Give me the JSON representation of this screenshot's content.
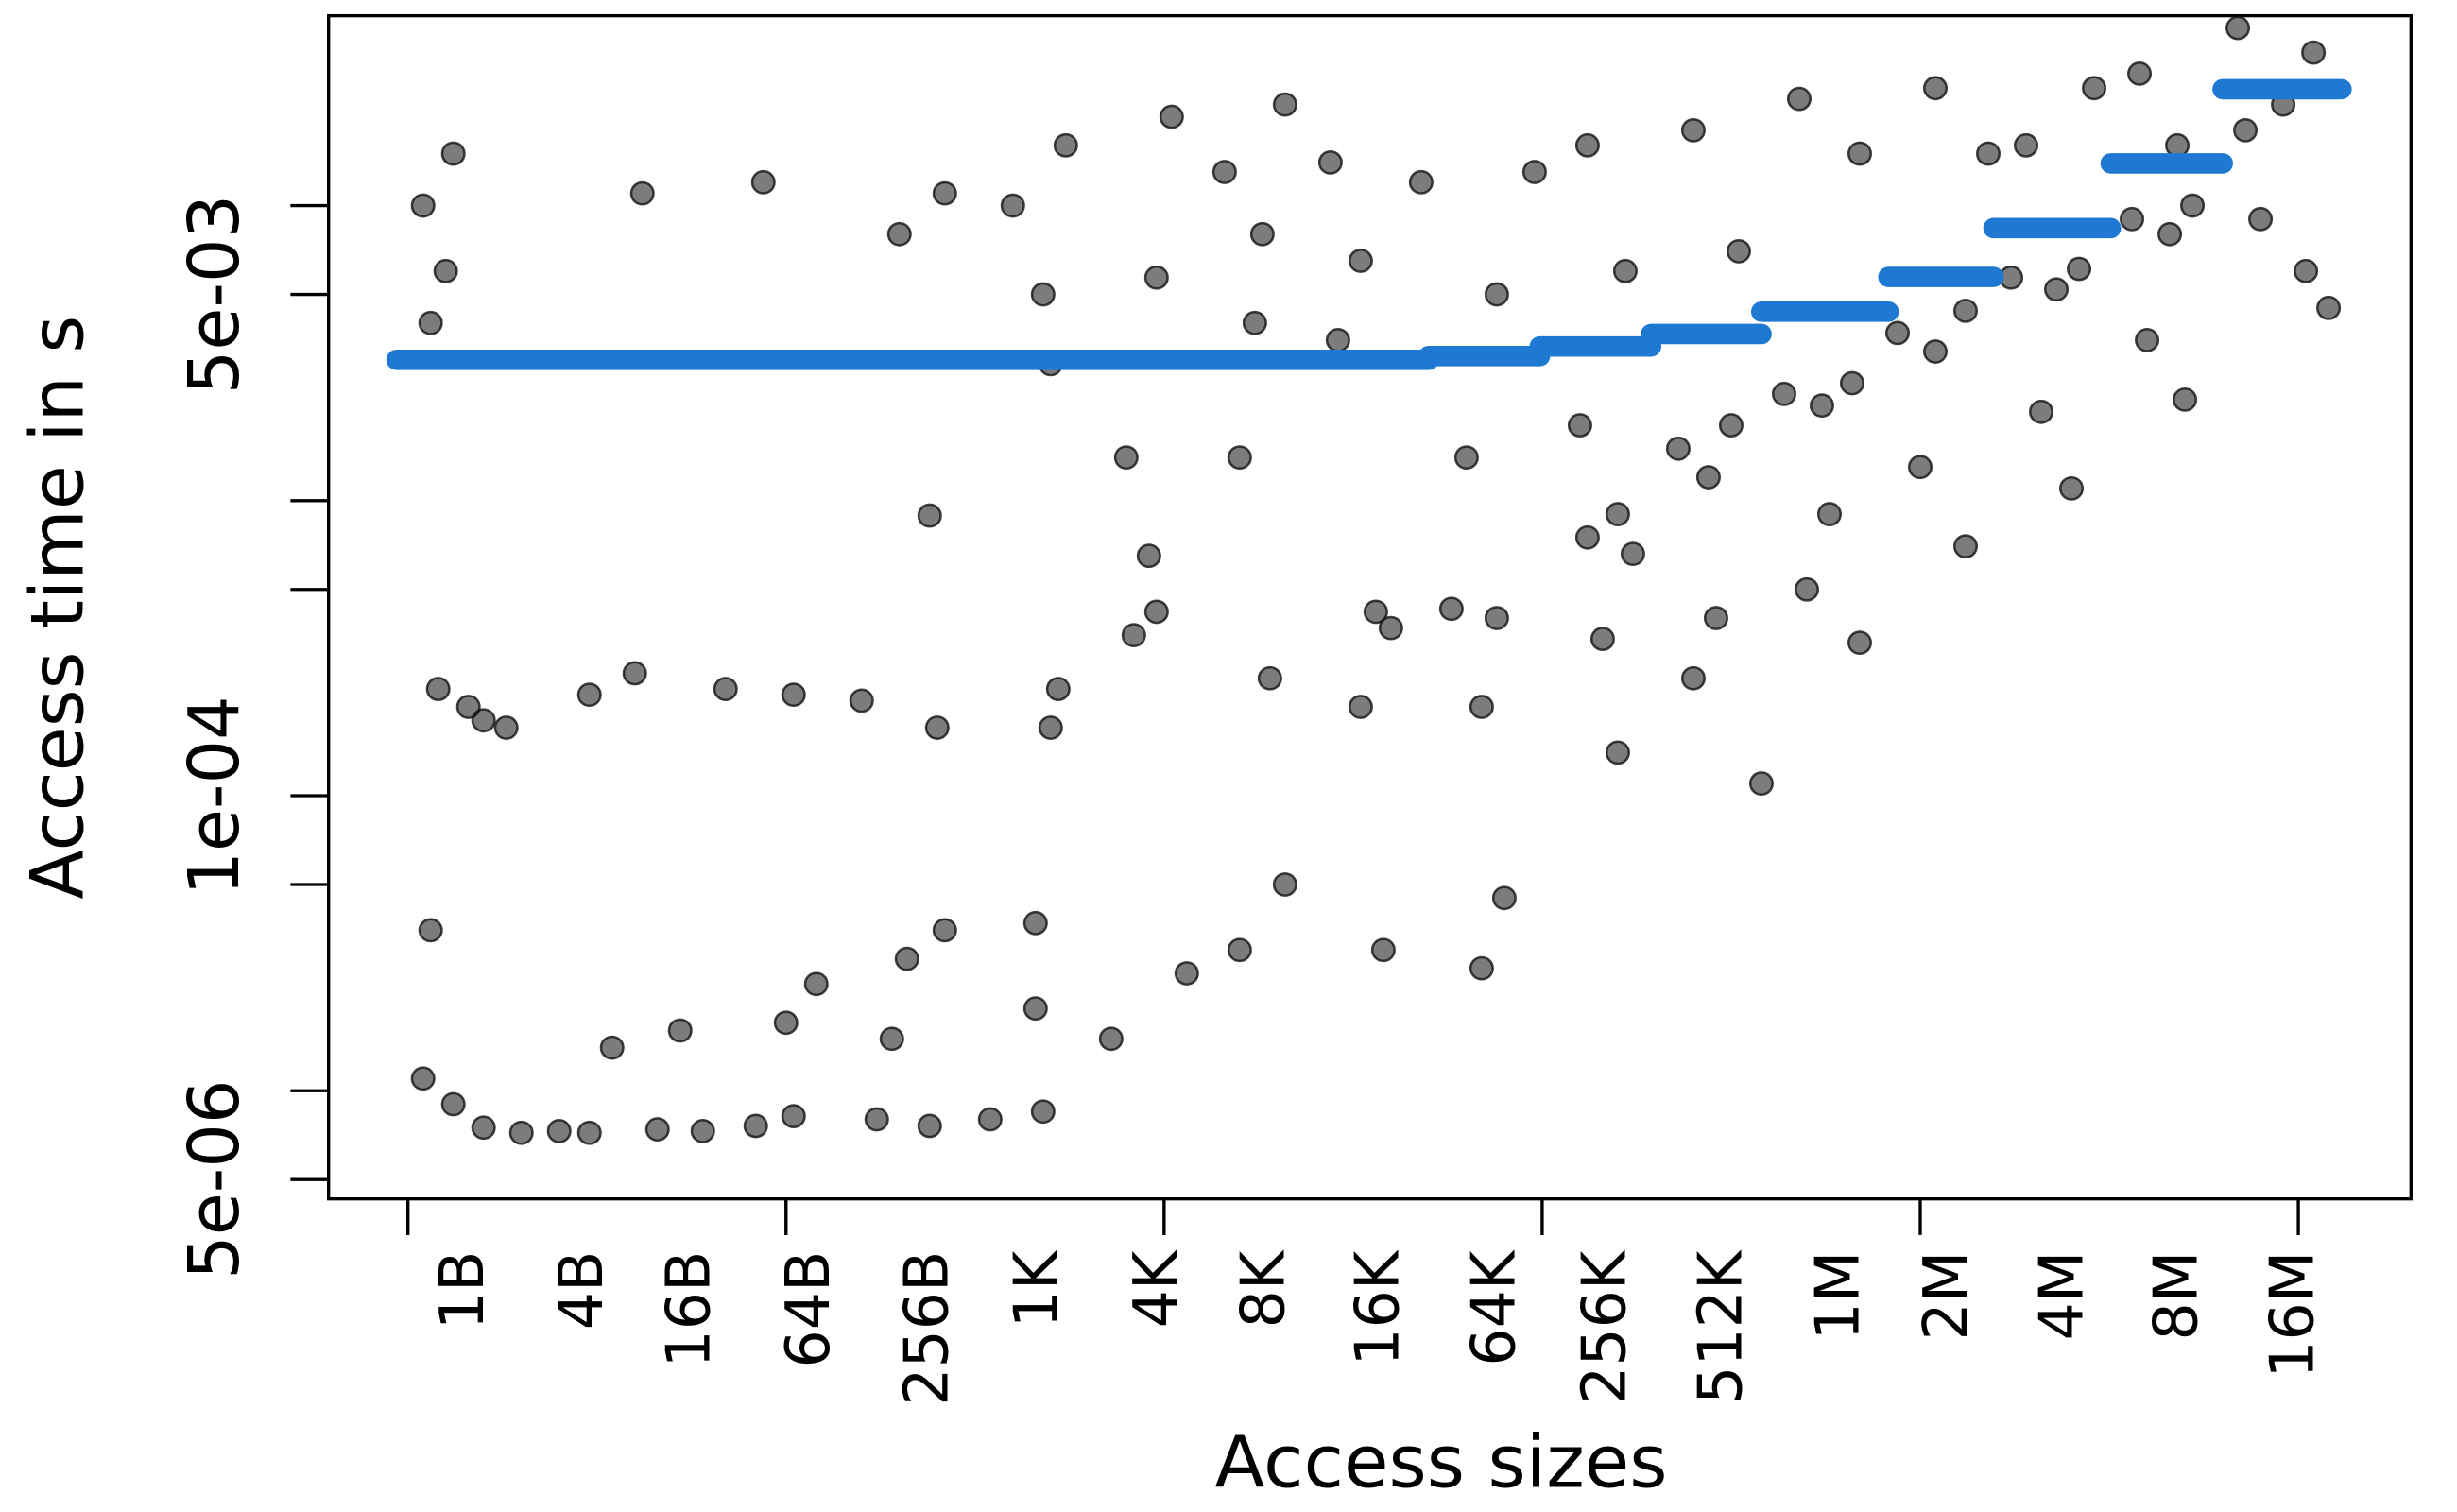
{
  "chart_data": {
    "type": "scatter",
    "xlabel": "Access sizes",
    "ylabel": "Access time in s",
    "log_y": true,
    "xlim": [
      -1.05,
      26.49
    ],
    "ylim": [
      4.3e-06,
      0.044
    ],
    "xticks": [
      0,
      5,
      10,
      15,
      20,
      25
    ],
    "xlabels": [
      {
        "value": 0.7,
        "label": "1B"
      },
      {
        "value": 2.27,
        "label": "4B"
      },
      {
        "value": 3.69,
        "label": "16B"
      },
      {
        "value": 5.27,
        "label": "64B"
      },
      {
        "value": 6.84,
        "label": "256B"
      },
      {
        "value": 8.29,
        "label": "1K"
      },
      {
        "value": 9.87,
        "label": "4K"
      },
      {
        "value": 11.29,
        "label": "8K"
      },
      {
        "value": 12.8,
        "label": "16K"
      },
      {
        "value": 14.34,
        "label": "64K"
      },
      {
        "value": 15.8,
        "label": "256K"
      },
      {
        "value": 17.34,
        "label": "512K"
      },
      {
        "value": 18.89,
        "label": "1M"
      },
      {
        "value": 20.32,
        "label": "2M"
      },
      {
        "value": 21.85,
        "label": "4M"
      },
      {
        "value": 23.36,
        "label": "8M"
      },
      {
        "value": 24.9,
        "label": "16M"
      }
    ],
    "yticks": [
      {
        "value": 5e-06,
        "label": "5e-06"
      },
      {
        "value": 1e-05
      },
      {
        "value": 5e-05
      },
      {
        "value": 0.0001,
        "label": "1e-04"
      },
      {
        "value": 0.0005
      },
      {
        "value": 0.001
      },
      {
        "value": 0.005,
        "label": "5e-03"
      },
      {
        "value": 0.01
      }
    ],
    "points": {
      "color": "#111111",
      "x": [
        0.2,
        0.5,
        0.3,
        0.6,
        0.4,
        0.8,
        1.0,
        1.3,
        0.3,
        0.2,
        0.6,
        1.0,
        1.5,
        2.0,
        2.4,
        2.7,
        2.4,
        3.0,
        3.3,
        3.9,
        3.6,
        4.2,
        3.1,
        4.6,
        5.1,
        5.0,
        5.4,
        4.7,
        5.1,
        6.0,
        6.2,
        6.9,
        6.4,
        6.6,
        7.1,
        6.5,
        7.1,
        7.0,
        6.9,
        7.7,
        8.4,
        8.3,
        8.3,
        8.0,
        8.4,
        8.5,
        8.5,
        8.6,
        8.7,
        9.3,
        9.6,
        9.9,
        9.8,
        10.1,
        9.9,
        9.5,
        10.3,
        10.8,
        11.3,
        11.6,
        11.2,
        11.0,
        11.6,
        11.4,
        11.0,
        12.2,
        12.6,
        12.3,
        12.8,
        13.0,
        12.6,
        12.9,
        13.4,
        13.8,
        14.4,
        14.0,
        14.2,
        14.5,
        14.2,
        14.9,
        14.4,
        15.6,
        16.0,
        16.2,
        15.5,
        15.8,
        16.0,
        15.6,
        16.1,
        16.8,
        17.2,
        17.5,
        17.3,
        17.0,
        17.9,
        17.0,
        17.6,
        18.2,
        18.7,
        19.1,
        18.8,
        18.5,
        19.2,
        18.4,
        19.2,
        19.7,
        20.2,
        20.6,
        20.0,
        20.6,
        20.2,
        20.9,
        21.2,
        21.8,
        22.1,
        21.6,
        22.0,
        21.4,
        22.3,
        22.8,
        23.3,
        23.6,
        23.0,
        23.5,
        22.9,
        23.4,
        24.3,
        24.8,
        25.2,
        24.5,
        25.1,
        25.4,
        24.2
      ],
      "values": [
        0.01,
        0.006,
        0.004,
        0.015,
        0.00023,
        0.0002,
        0.00018,
        0.00017,
        3.5e-05,
        1.1e-05,
        9e-06,
        7.5e-06,
        7.2e-06,
        7.3e-06,
        7.2e-06,
        1.4e-05,
        0.00022,
        0.00026,
        7.4e-06,
        7.3e-06,
        1.6e-05,
        0.00023,
        0.011,
        7.6e-06,
        8.2e-06,
        1.7e-05,
        2.3e-05,
        0.012,
        0.00022,
        0.00021,
        8e-06,
        7.6e-06,
        1.5e-05,
        2.8e-05,
        3.5e-05,
        0.008,
        0.011,
        0.00017,
        0.00089,
        8e-06,
        8.5e-06,
        1.9e-05,
        3.7e-05,
        0.01,
        0.005,
        0.0029,
        0.00017,
        0.00023,
        0.016,
        1.5e-05,
        0.00035,
        0.00042,
        0.00065,
        0.02,
        0.0057,
        0.0014,
        2.5e-05,
        0.013,
        0.008,
        0.022,
        0.004,
        3e-05,
        5e-05,
        0.00025,
        0.0014,
        0.014,
        0.0065,
        0.0035,
        0.00042,
        0.00037,
        0.0002,
        3e-05,
        0.012,
        0.00043,
        0.0004,
        0.0014,
        0.0002,
        4.5e-05,
        2.6e-05,
        0.013,
        0.005,
        0.00075,
        0.0009,
        0.00066,
        0.0018,
        0.00034,
        0.00014,
        0.016,
        0.006,
        0.0015,
        0.0012,
        0.0018,
        0.0004,
        0.00025,
        0.00011,
        0.018,
        0.007,
        0.0023,
        0.0021,
        0.0025,
        0.0009,
        0.0005,
        0.00033,
        0.023,
        0.015,
        0.0037,
        0.0032,
        0.0044,
        0.0013,
        0.0007,
        0.025,
        0.015,
        0.0057,
        0.0052,
        0.0061,
        0.002,
        0.0011,
        0.016,
        0.025,
        0.009,
        0.008,
        0.01,
        0.0035,
        0.0022,
        0.028,
        0.016,
        0.018,
        0.022,
        0.033,
        0.009,
        0.006,
        0.0045,
        0.04
      ]
    },
    "steps": {
      "color": "#1f78d1",
      "x": [
        -0.15,
        13.5,
        14.97,
        16.44,
        17.9,
        19.58,
        20.97,
        22.52,
        24.0
      ],
      "x_end": [
        13.5,
        14.97,
        16.44,
        17.9,
        19.58,
        20.97,
        22.52,
        24.0,
        25.57
      ],
      "values": [
        0.003,
        0.00309,
        0.00333,
        0.00367,
        0.00437,
        0.00573,
        0.00839,
        0.0139,
        0.0248
      ]
    }
  }
}
